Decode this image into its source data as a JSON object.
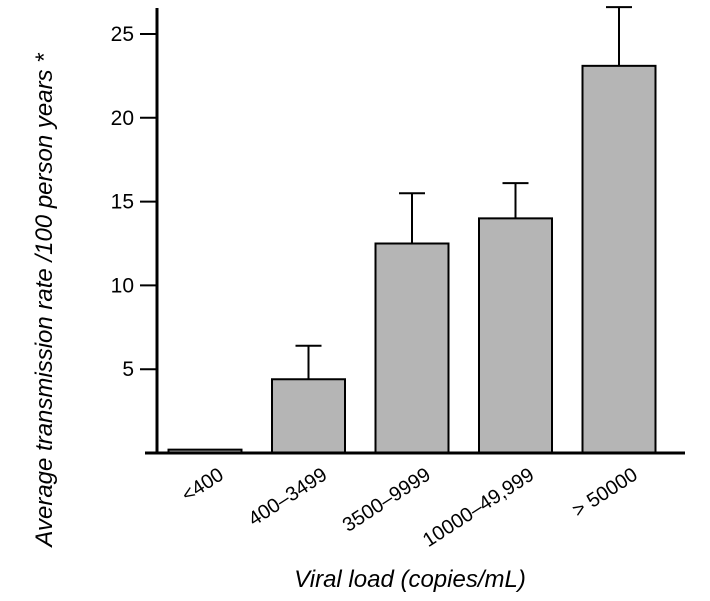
{
  "chart_data": {
    "type": "bar",
    "title": "",
    "xlabel": "Viral load (copies/mL)",
    "ylabel": "Average transmission rate /100 person years *",
    "categories": [
      "<400",
      "400–3499",
      "3500–9999",
      "10000–49,999",
      "> 50000"
    ],
    "values": [
      0.2,
      4.4,
      12.5,
      14.0,
      23.1
    ],
    "error_upper": [
      0.2,
      6.4,
      15.5,
      16.1,
      26.6
    ],
    "ylim": [
      0,
      27
    ],
    "yticks": [
      5,
      10,
      15,
      20,
      25
    ],
    "grid": false,
    "legend": "none",
    "bar_color": "#b5b5b5",
    "axis_color": "#000000"
  }
}
